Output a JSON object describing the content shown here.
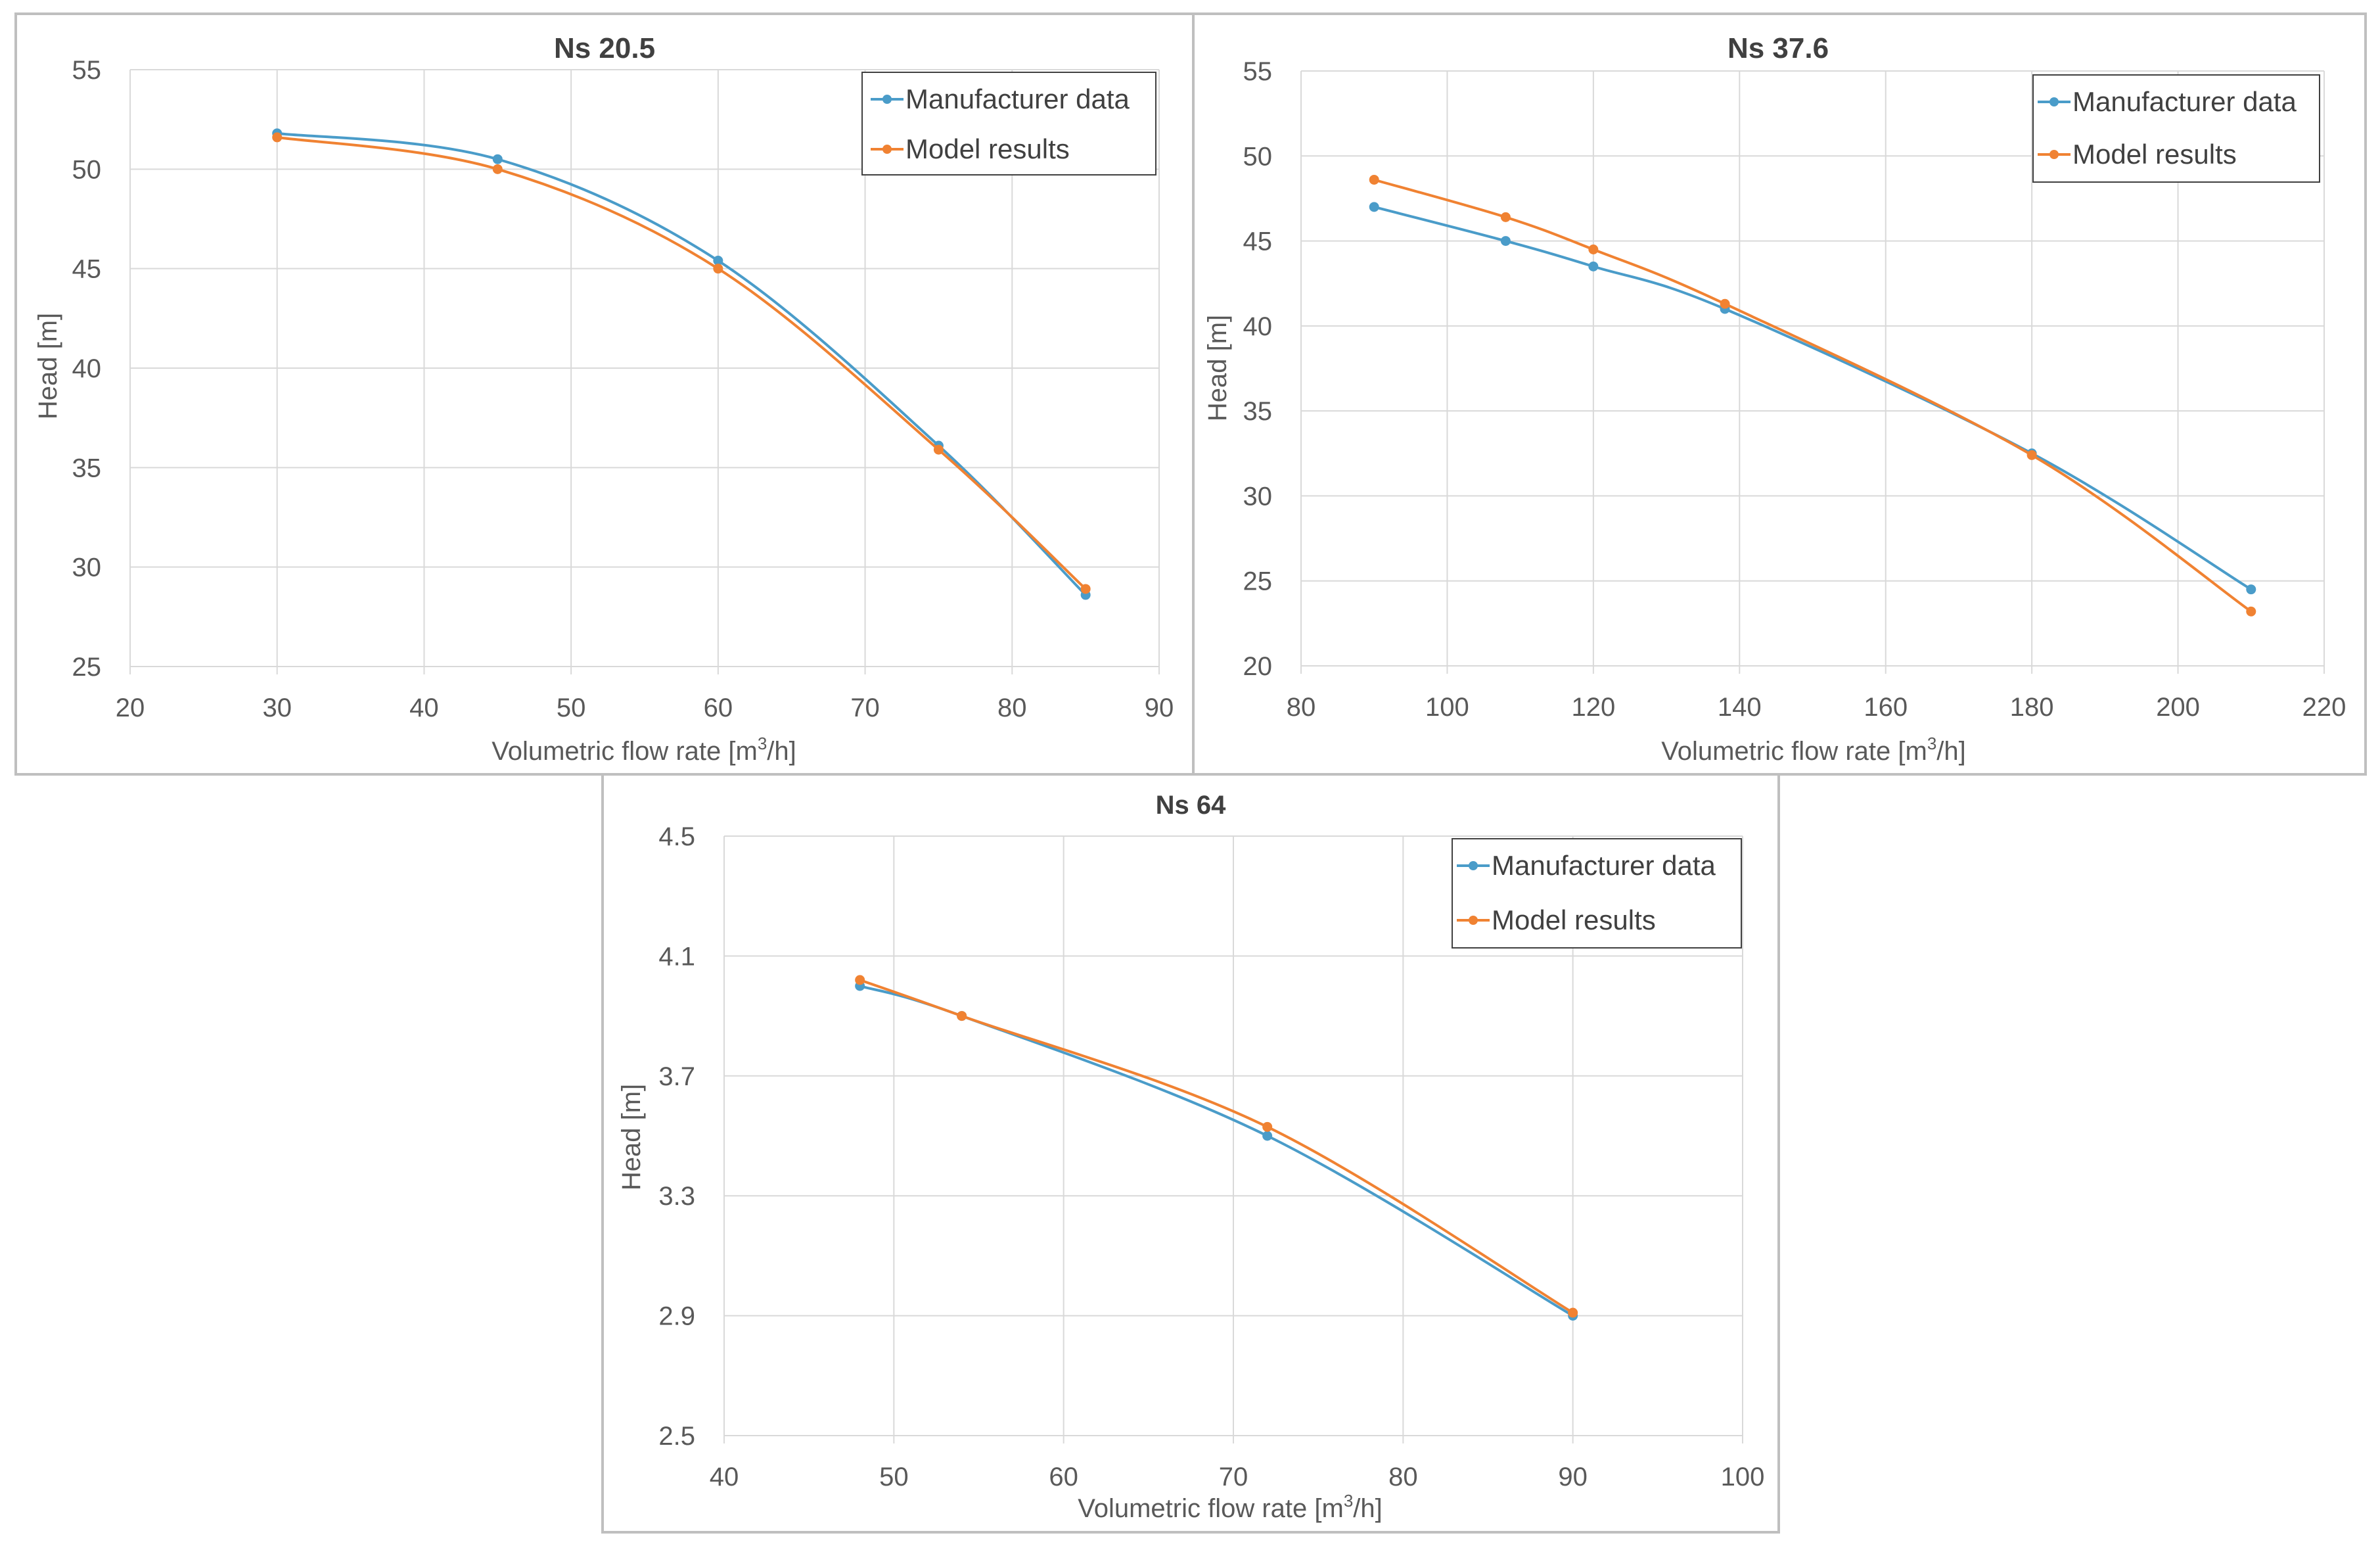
{
  "figure": {
    "manufacturer_color": "#4a9cc9",
    "model_color": "#f08232"
  },
  "chart_data": [
    {
      "type": "line",
      "title": "Ns 20.5",
      "xlabel_main": "Volumetric flow rate [m",
      "xlabel_sup": "3",
      "xlabel_end": "/h]",
      "ylabel": "Head [m]",
      "xlim": [
        20,
        90
      ],
      "ylim": [
        25,
        55
      ],
      "xticks": [
        "20",
        "30",
        "40",
        "50",
        "60",
        "70",
        "80",
        "90"
      ],
      "yticks": [
        "25",
        "30",
        "35",
        "40",
        "45",
        "50",
        "55"
      ],
      "legend_position": "top-right",
      "series": [
        {
          "name": "Manufacturer data",
          "color": "#4a9cc9",
          "x": [
            30,
            45,
            60,
            75,
            85
          ],
          "y": [
            51.8,
            50.5,
            45.4,
            36.1,
            28.6
          ]
        },
        {
          "name": "Model results",
          "color": "#f08232",
          "x": [
            30,
            45,
            60,
            75,
            85
          ],
          "y": [
            51.6,
            50.0,
            45.0,
            35.9,
            28.9
          ]
        }
      ]
    },
    {
      "type": "line",
      "title": "Ns 37.6",
      "xlabel_main": "Volumetric flow rate [m",
      "xlabel_sup": "3",
      "xlabel_end": "/h]",
      "ylabel": "Head [m]",
      "xlim": [
        80,
        220
      ],
      "ylim": [
        20,
        55
      ],
      "xticks": [
        "80",
        "100",
        "120",
        "140",
        "160",
        "180",
        "200",
        "220"
      ],
      "yticks": [
        "20",
        "25",
        "30",
        "35",
        "40",
        "45",
        "50",
        "55"
      ],
      "legend_position": "top-right",
      "series": [
        {
          "name": "Manufacturer data",
          "color": "#4a9cc9",
          "x": [
            90,
            108,
            120,
            138,
            180,
            210
          ],
          "y": [
            47.0,
            45.0,
            43.5,
            41.0,
            32.5,
            24.5
          ]
        },
        {
          "name": "Model results",
          "color": "#f08232",
          "x": [
            90,
            108,
            120,
            138,
            180,
            210
          ],
          "y": [
            48.6,
            46.4,
            44.5,
            41.3,
            32.4,
            23.2
          ]
        }
      ]
    },
    {
      "type": "line",
      "title": "Ns 64",
      "xlabel_main": "Volumetric flow rate [m",
      "xlabel_sup": "3",
      "xlabel_end": "/h]",
      "ylabel": "Head [m]",
      "xlim": [
        40,
        100
      ],
      "ylim": [
        2.5,
        4.5
      ],
      "xticks": [
        "40",
        "50",
        "60",
        "70",
        "80",
        "90",
        "100"
      ],
      "yticks": [
        "2.5",
        "2.9",
        "3.3",
        "3.7",
        "4.1",
        "4.5"
      ],
      "legend_position": "top-right",
      "series": [
        {
          "name": "Manufacturer data",
          "color": "#4a9cc9",
          "x": [
            48,
            54,
            72,
            90
          ],
          "y": [
            4.0,
            3.9,
            3.5,
            2.9
          ]
        },
        {
          "name": "Model results",
          "color": "#f08232",
          "x": [
            48,
            54,
            72,
            90
          ],
          "y": [
            4.02,
            3.9,
            3.53,
            2.91
          ]
        }
      ]
    }
  ]
}
